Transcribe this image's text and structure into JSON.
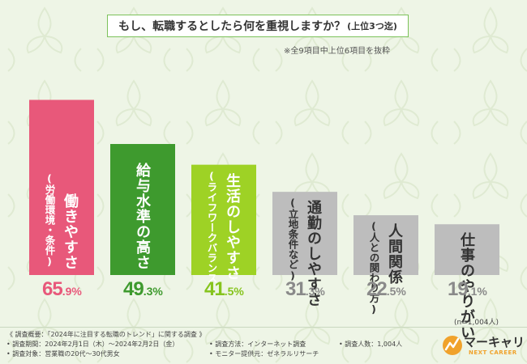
{
  "title": {
    "main": "もし、転職するとしたら何を重視しますか？",
    "suffix": "(上位3つ迄)"
  },
  "note_top": "※全9項目中上位6項目を抜粋",
  "chart_data": {
    "type": "bar",
    "title": "もし、転職するとしたら何を重視しますか？(上位3つ迄)",
    "categories": [
      "働きやすさ(労働環境・条件)",
      "給与水準の高さ",
      "生活のしやすさ(ライフワークバランス)",
      "通勤のしやすさ(立地条件など)",
      "人間関係(人との関わり方)",
      "仕事のやりがい"
    ],
    "labels": [
      {
        "main": "働きやすさ",
        "sub": "(労働環境・条件)"
      },
      {
        "main": "給与水準の高さ",
        "sub": ""
      },
      {
        "main": "生活のしやすさ",
        "sub": "(ライフワークバランス)"
      },
      {
        "main": "通勤のしやすさ",
        "sub": "(立地条件など)"
      },
      {
        "main": "人間関係",
        "sub": "(人との関わり方)"
      },
      {
        "main": "仕事のやりがい",
        "sub": ""
      }
    ],
    "values": [
      65.9,
      49.3,
      41.5,
      31.3,
      22.5,
      19.1
    ],
    "value_display": [
      {
        "int": "65",
        "frac": ".9%"
      },
      {
        "int": "49",
        "frac": ".3%"
      },
      {
        "int": "41",
        "frac": ".5%"
      },
      {
        "int": "31",
        "frac": ".3%"
      },
      {
        "int": "22",
        "frac": ".5%"
      },
      {
        "int": "19",
        "frac": ".1%"
      }
    ],
    "colors": [
      "#e8587a",
      "#3e9a2e",
      "#9ed225",
      "#bdbdbd",
      "#bdbdbd",
      "#bdbdbd"
    ],
    "value_colors": [
      "#e8587a",
      "#3e9a2e",
      "#86c41e",
      "#8a8a8a",
      "#8a8a8a",
      "#8a8a8a"
    ],
    "ylim": [
      0,
      70
    ],
    "xlabel": "",
    "ylabel": "",
    "grid": false
  },
  "sample_note": "(n=1,004人)",
  "footer": {
    "overview": "《 調査概要：「2024年に注目する転職のトレンド」に関する調査 》",
    "period": "• 調査期間：2024年2月1日（木）〜2024年2月2日（金）",
    "target": "• 調査対象：営業職の20代〜30代男女",
    "method": "• 調査方法：インターネット調査",
    "provider": "• モニター提供元：ゼネラルリサーチ",
    "count": "• 調査人数：1,004人"
  },
  "logo": {
    "name": "マーキャリ",
    "sub": "NEXT CAREER",
    "accent": "#f0a22b"
  }
}
